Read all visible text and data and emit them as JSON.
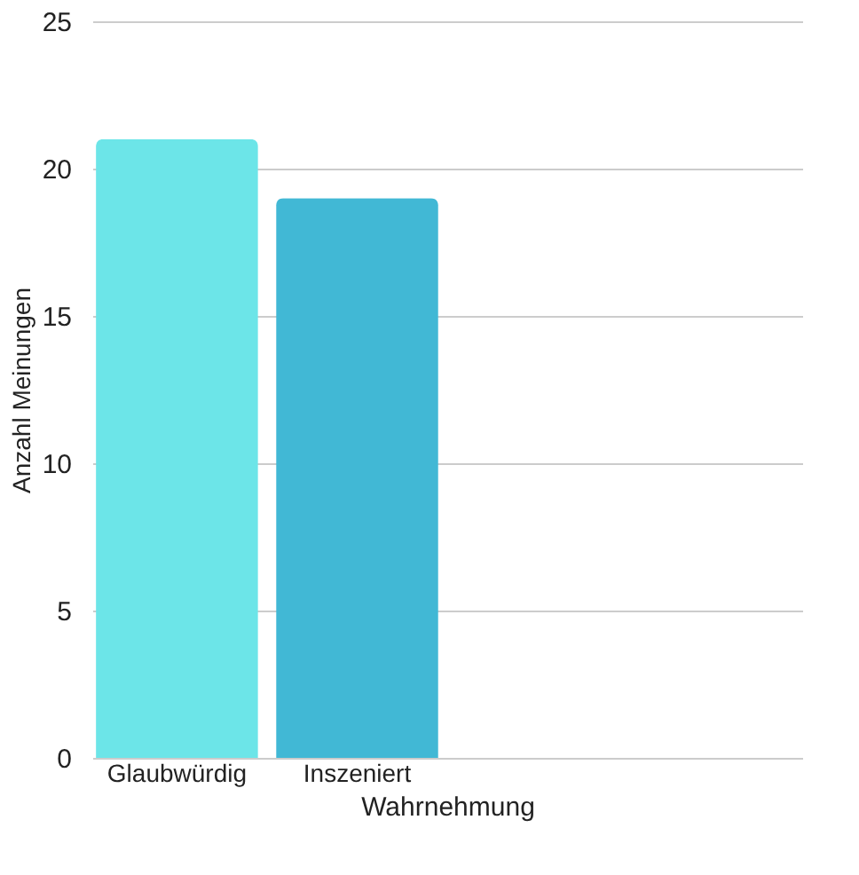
{
  "chart_data": {
    "type": "bar",
    "xlabel": "Wahrnehmung",
    "ylabel": "Anzahl Meinungen",
    "categories": [
      "Glaubwürdig",
      "Inszeniert",
      null,
      null
    ],
    "values": [
      21,
      19,
      null,
      null
    ],
    "colors": [
      "#6ce5e8",
      "#41b8d5",
      "#6ce5e8",
      "#41b8d5"
    ],
    "ylim": [
      0,
      25
    ],
    "yticks": [
      0,
      5,
      10,
      15,
      20,
      25
    ],
    "grid": "y"
  }
}
